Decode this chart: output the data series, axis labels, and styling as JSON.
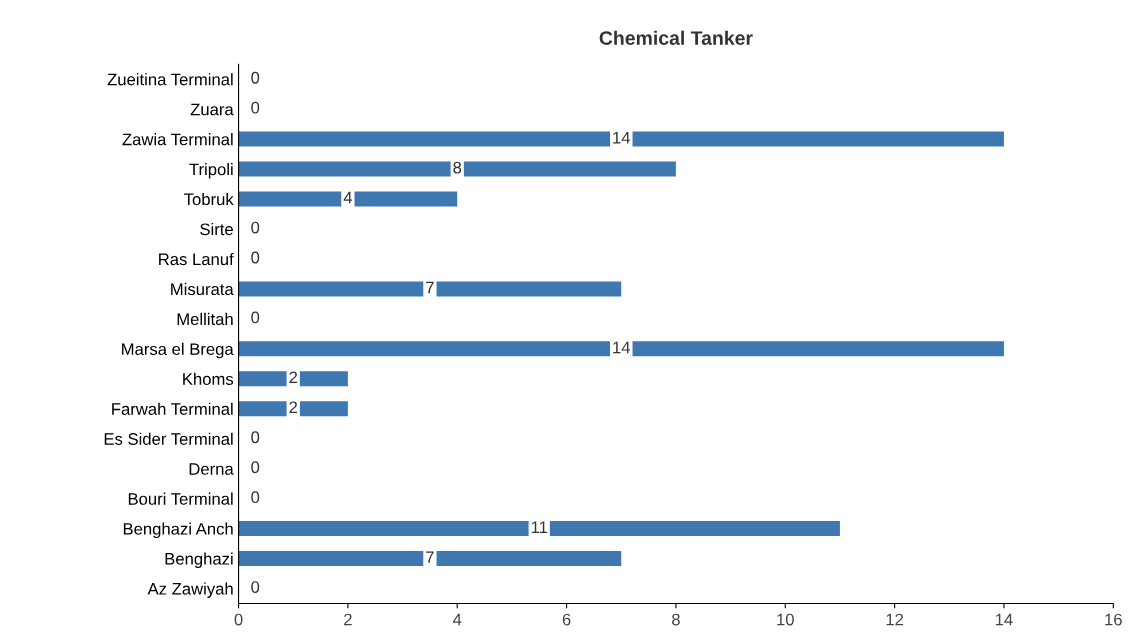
{
  "chart_data": {
    "type": "bar",
    "orientation": "horizontal",
    "title": "Chemical Tanker",
    "categories": [
      "Zueitina Terminal",
      "Zuara",
      "Zawia Terminal",
      "Tripoli",
      "Tobruk",
      "Sirte",
      "Ras Lanuf",
      "Misurata",
      "Mellitah",
      "Marsa el Brega",
      "Khoms",
      "Farwah Terminal",
      "Es Sider Terminal",
      "Derna",
      "Bouri Terminal",
      "Benghazi Anch",
      "Benghazi",
      "Az Zawiyah"
    ],
    "values": [
      0,
      0,
      14,
      8,
      4,
      0,
      0,
      7,
      0,
      14,
      2,
      2,
      0,
      0,
      0,
      11,
      7,
      0
    ],
    "color": "#3f78b0",
    "xlim": [
      0,
      16
    ],
    "xticks": [
      0,
      2,
      4,
      6,
      8,
      10,
      12,
      14,
      16
    ],
    "data_labels": true,
    "grid": false
  }
}
